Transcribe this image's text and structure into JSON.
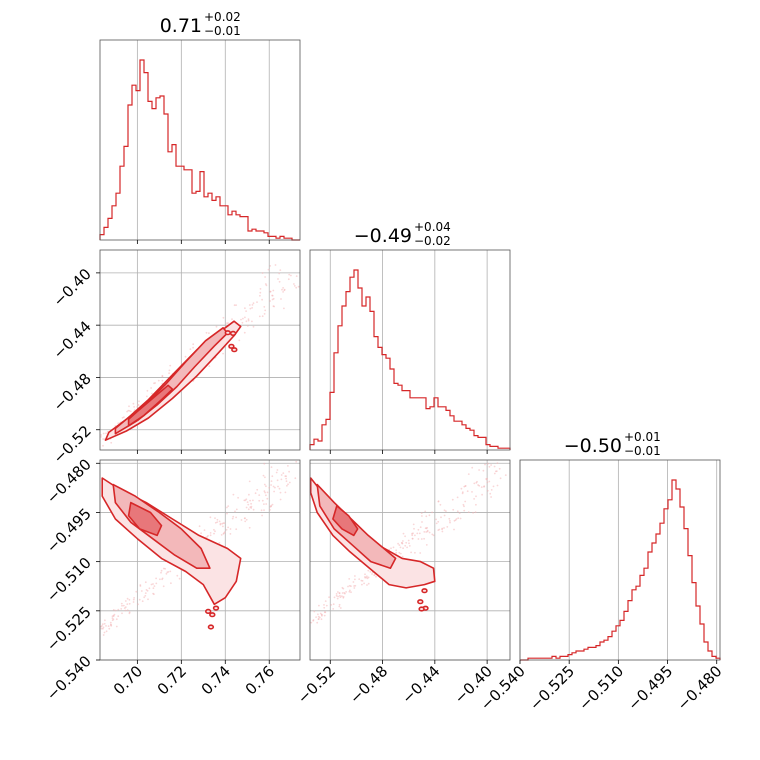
{
  "chart_data": {
    "type": "corner",
    "color": "#d62728",
    "fill_colors": [
      "#fbe3e4",
      "#f3b8ba",
      "#e8777a"
    ],
    "parameters": [
      {
        "title": "0.71",
        "upper": "+0.02",
        "lower": "−0.01",
        "range": [
          0.683,
          0.774
        ]
      },
      {
        "title": "−0.49",
        "upper": "+0.04",
        "lower": "−0.02",
        "range": [
          -0.5355,
          -0.3825
        ]
      },
      {
        "title": "−0.50",
        "upper": "+0.01",
        "lower": "−0.01",
        "range": [
          -0.54,
          -0.479
        ]
      }
    ],
    "ticks": [
      {
        "values": [
          0.7,
          0.72,
          0.74,
          0.76
        ],
        "labels": [
          "0.70",
          "0.72",
          "0.74",
          "0.76"
        ]
      },
      {
        "values": [
          -0.52,
          -0.48,
          -0.44,
          -0.4
        ],
        "labels": [
          "−0.52",
          "−0.48",
          "−0.44",
          "−0.40"
        ]
      },
      {
        "values": [
          -0.54,
          -0.525,
          -0.51,
          -0.495,
          -0.48
        ],
        "labels": [
          "−0.540",
          "−0.525",
          "−0.510",
          "−0.495",
          "−0.480"
        ]
      }
    ],
    "histograms": [
      {
        "start": 0.683,
        "end": 0.774,
        "counts": [
          0.03,
          0.07,
          0.12,
          0.19,
          0.26,
          0.41,
          0.52,
          0.75,
          0.86,
          0.83,
          1.0,
          0.93,
          0.77,
          0.73,
          0.79,
          0.8,
          0.7,
          0.49,
          0.53,
          0.41,
          0.41,
          0.39,
          0.39,
          0.26,
          0.27,
          0.38,
          0.24,
          0.26,
          0.22,
          0.24,
          0.19,
          0.19,
          0.14,
          0.16,
          0.14,
          0.13,
          0.13,
          0.05,
          0.06,
          0.05,
          0.05,
          0.04,
          0.02,
          0.02,
          0.01,
          0.02,
          0.01,
          0.01,
          0.0,
          0.0
        ]
      },
      {
        "start": -0.5355,
        "end": -0.3825,
        "counts": [
          0.03,
          0.06,
          0.05,
          0.14,
          0.17,
          0.32,
          0.54,
          0.69,
          0.8,
          0.88,
          0.96,
          1.0,
          0.9,
          0.8,
          0.85,
          0.77,
          0.63,
          0.57,
          0.53,
          0.51,
          0.45,
          0.37,
          0.36,
          0.33,
          0.33,
          0.29,
          0.29,
          0.29,
          0.29,
          0.23,
          0.24,
          0.29,
          0.24,
          0.24,
          0.22,
          0.19,
          0.16,
          0.16,
          0.14,
          0.12,
          0.11,
          0.08,
          0.07,
          0.07,
          0.03,
          0.02,
          0.02,
          0.01,
          0.01,
          0.01
        ]
      },
      {
        "start": -0.54,
        "end": -0.479,
        "counts": [
          0.0,
          0.0,
          0.01,
          0.01,
          0.01,
          0.01,
          0.01,
          0.01,
          0.02,
          0.01,
          0.02,
          0.02,
          0.03,
          0.04,
          0.05,
          0.05,
          0.06,
          0.07,
          0.07,
          0.08,
          0.1,
          0.11,
          0.13,
          0.16,
          0.19,
          0.22,
          0.27,
          0.33,
          0.39,
          0.41,
          0.47,
          0.51,
          0.6,
          0.65,
          0.7,
          0.76,
          0.84,
          0.89,
          1.0,
          0.95,
          0.85,
          0.73,
          0.58,
          0.43,
          0.3,
          0.2,
          0.1,
          0.05,
          0.02,
          0.01
        ]
      }
    ],
    "contours_2d": [
      {
        "x_param": 0,
        "y_param": 1,
        "levels": [
          [
            [
              0.6855,
              -0.528
            ],
            [
              0.695,
              -0.521
            ],
            [
              0.705,
              -0.511
            ],
            [
              0.716,
              -0.496
            ],
            [
              0.727,
              -0.479
            ],
            [
              0.737,
              -0.461
            ],
            [
              0.744,
              -0.448
            ],
            [
              0.747,
              -0.441
            ],
            [
              0.744,
              -0.437
            ],
            [
              0.736,
              -0.447
            ],
            [
              0.727,
              -0.459
            ],
            [
              0.716,
              -0.478
            ],
            [
              0.705,
              -0.497
            ],
            [
              0.695,
              -0.512
            ],
            [
              0.687,
              -0.522
            ]
          ],
          [
            [
              0.69,
              -0.523
            ],
            [
              0.7,
              -0.513
            ],
            [
              0.709,
              -0.501
            ],
            [
              0.718,
              -0.487
            ],
            [
              0.726,
              -0.472
            ],
            [
              0.735,
              -0.456
            ],
            [
              0.741,
              -0.446
            ],
            [
              0.739,
              -0.442
            ],
            [
              0.731,
              -0.452
            ],
            [
              0.722,
              -0.468
            ],
            [
              0.713,
              -0.485
            ],
            [
              0.704,
              -0.5
            ],
            [
              0.695,
              -0.512
            ],
            [
              0.69,
              -0.519
            ]
          ],
          [
            [
              0.696,
              -0.517
            ],
            [
              0.703,
              -0.509
            ],
            [
              0.711,
              -0.497
            ],
            [
              0.716,
              -0.489
            ],
            [
              0.714,
              -0.486
            ],
            [
              0.707,
              -0.496
            ],
            [
              0.7,
              -0.506
            ],
            [
              0.696,
              -0.512
            ]
          ]
        ],
        "scatter_box": [
          [
            0.683,
            -0.531
          ],
          [
            0.772,
            -0.398
          ]
        ]
      },
      {
        "x_param": 0,
        "y_param": 2,
        "levels": [
          [
            [
              0.684,
              -0.4845
            ],
            [
              0.692,
              -0.488
            ],
            [
              0.704,
              -0.492
            ],
            [
              0.716,
              -0.497
            ],
            [
              0.728,
              -0.502
            ],
            [
              0.741,
              -0.506
            ],
            [
              0.747,
              -0.509
            ],
            [
              0.745,
              -0.516
            ],
            [
              0.74,
              -0.521
            ],
            [
              0.735,
              -0.523
            ],
            [
              0.73,
              -0.517
            ],
            [
              0.722,
              -0.513
            ],
            [
              0.711,
              -0.509
            ],
            [
              0.7,
              -0.503
            ],
            [
              0.69,
              -0.497
            ],
            [
              0.684,
              -0.49
            ]
          ],
          [
            [
              0.689,
              -0.4865
            ],
            [
              0.699,
              -0.49
            ],
            [
              0.71,
              -0.495
            ],
            [
              0.72,
              -0.5
            ],
            [
              0.729,
              -0.506
            ],
            [
              0.733,
              -0.512
            ],
            [
              0.727,
              -0.512
            ],
            [
              0.717,
              -0.508
            ],
            [
              0.707,
              -0.503
            ],
            [
              0.697,
              -0.498
            ],
            [
              0.69,
              -0.492
            ]
          ],
          [
            [
              0.697,
              -0.492
            ],
            [
              0.706,
              -0.495
            ],
            [
              0.711,
              -0.499
            ],
            [
              0.709,
              -0.502
            ],
            [
              0.701,
              -0.5
            ],
            [
              0.696,
              -0.496
            ]
          ]
        ],
        "scatter_box": [
          [
            0.683,
            -0.531
          ],
          [
            0.772,
            -0.481
          ]
        ]
      },
      {
        "x_param": 1,
        "y_param": 2,
        "levels": [
          [
            [
              -0.535,
              -0.4845
            ],
            [
              -0.524,
              -0.49
            ],
            [
              -0.511,
              -0.496
            ],
            [
              -0.497,
              -0.5
            ],
            [
              -0.483,
              -0.505
            ],
            [
              -0.465,
              -0.509
            ],
            [
              -0.451,
              -0.51
            ],
            [
              -0.441,
              -0.512
            ],
            [
              -0.44,
              -0.516
            ],
            [
              -0.448,
              -0.517
            ],
            [
              -0.462,
              -0.518
            ],
            [
              -0.475,
              -0.517
            ],
            [
              -0.49,
              -0.512
            ],
            [
              -0.505,
              -0.507
            ],
            [
              -0.518,
              -0.502
            ],
            [
              -0.53,
              -0.495
            ],
            [
              -0.535,
              -0.489
            ]
          ],
          [
            [
              -0.53,
              -0.4865
            ],
            [
              -0.517,
              -0.492
            ],
            [
              -0.504,
              -0.497
            ],
            [
              -0.491,
              -0.502
            ],
            [
              -0.479,
              -0.506
            ],
            [
              -0.47,
              -0.509
            ],
            [
              -0.474,
              -0.512
            ],
            [
              -0.489,
              -0.51
            ],
            [
              -0.503,
              -0.505
            ],
            [
              -0.517,
              -0.5
            ],
            [
              -0.528,
              -0.493
            ]
          ],
          [
            [
              -0.515,
              -0.493
            ],
            [
              -0.506,
              -0.496
            ],
            [
              -0.499,
              -0.5
            ],
            [
              -0.502,
              -0.502
            ],
            [
              -0.511,
              -0.5
            ],
            [
              -0.518,
              -0.497
            ]
          ]
        ],
        "scatter_box": [
          [
            -0.535,
            -0.528
          ],
          [
            -0.385,
            -0.481
          ]
        ]
      }
    ]
  }
}
